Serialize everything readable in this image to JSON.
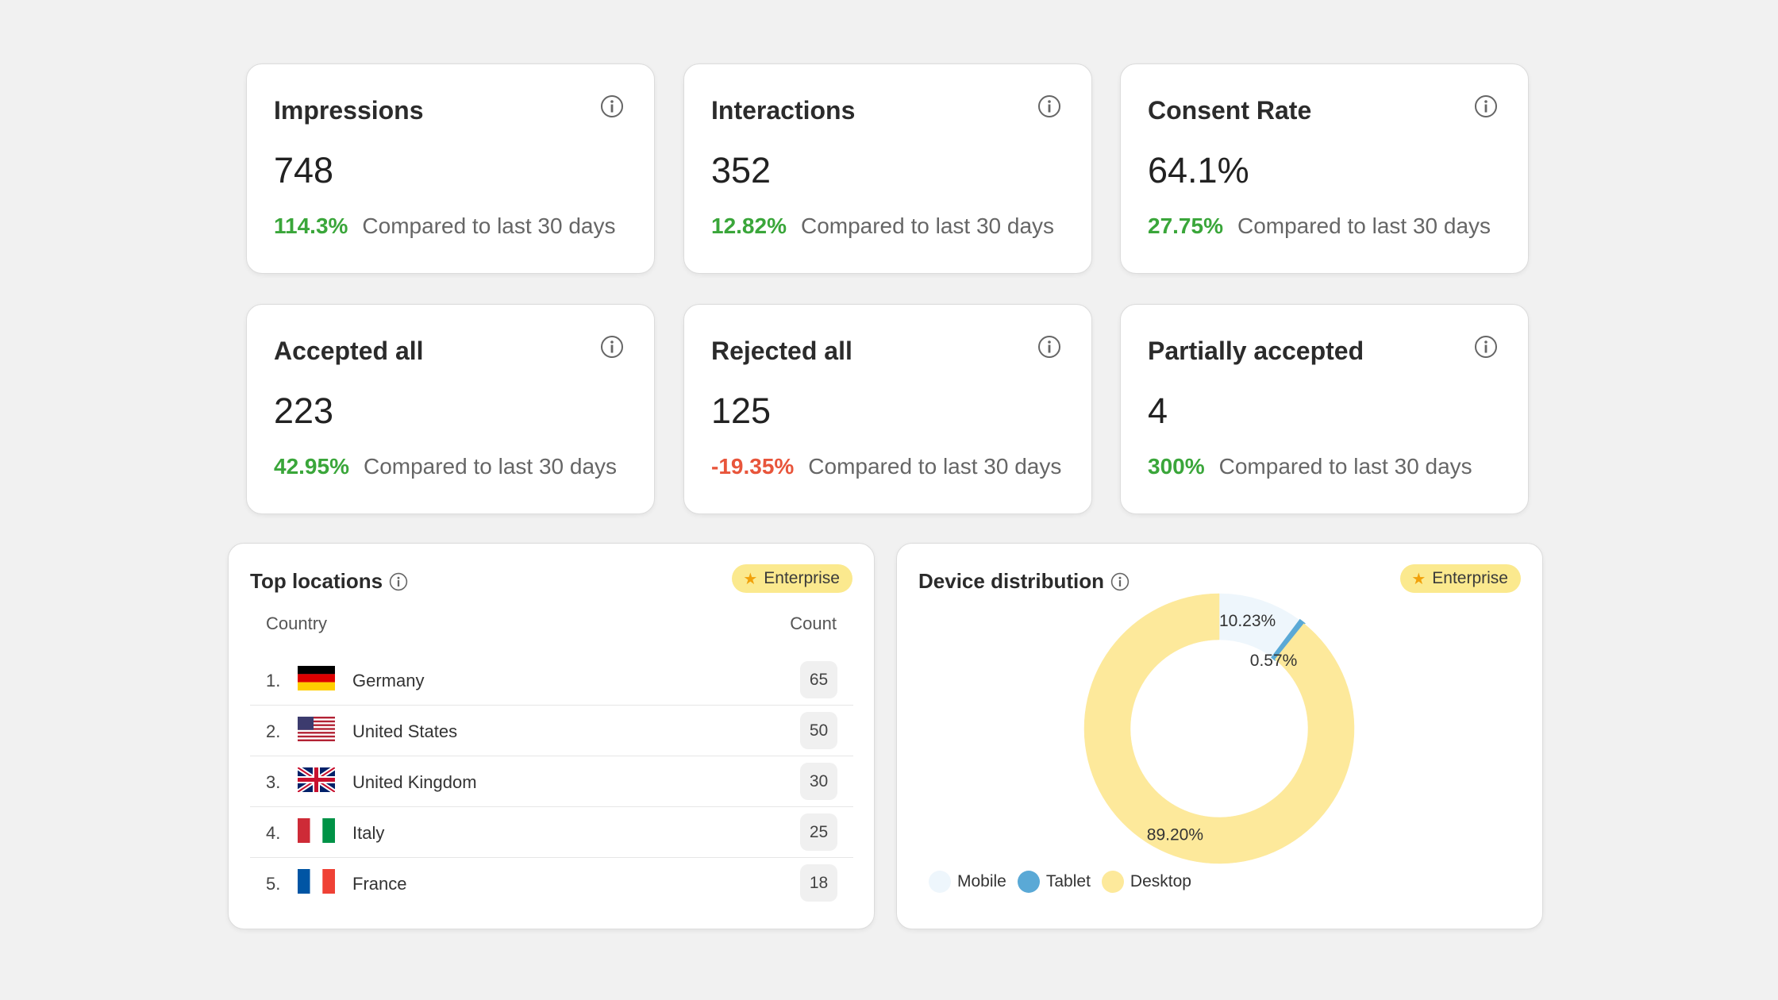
{
  "kpis": [
    {
      "title": "Impressions",
      "value": "748",
      "change": "114.3%",
      "trend": "up",
      "compare": "Compared to last 30 days"
    },
    {
      "title": "Interactions",
      "value": "352",
      "change": "12.82%",
      "trend": "up",
      "compare": "Compared to last 30 days"
    },
    {
      "title": "Consent Rate",
      "value": "64.1%",
      "change": "27.75%",
      "trend": "up",
      "compare": "Compared to last 30 days"
    },
    {
      "title": "Accepted all",
      "value": "223",
      "change": "42.95%",
      "trend": "up",
      "compare": "Compared to last 30 days"
    },
    {
      "title": "Rejected all",
      "value": "125",
      "change": "-19.35%",
      "trend": "down",
      "compare": "Compared to last 30 days"
    },
    {
      "title": "Partially accepted",
      "value": "4",
      "change": "300%",
      "trend": "up",
      "compare": "Compared to last 30 days"
    }
  ],
  "top_locations": {
    "title": "Top locations",
    "badge": "Enterprise",
    "col_country": "Country",
    "col_count": "Count",
    "rows": [
      {
        "rank": "1.",
        "country": "Germany",
        "count": "65",
        "flag": "flag-germany-icon"
      },
      {
        "rank": "2.",
        "country": "United States",
        "count": "50",
        "flag": "flag-united-states-icon"
      },
      {
        "rank": "3.",
        "country": "United Kingdom",
        "count": "30",
        "flag": "flag-united-kingdom-icon"
      },
      {
        "rank": "4.",
        "country": "Italy",
        "count": "25",
        "flag": "flag-italy-icon"
      },
      {
        "rank": "5.",
        "country": "France",
        "count": "18",
        "flag": "flag-france-icon"
      }
    ]
  },
  "device_distribution": {
    "title": "Device distribution",
    "badge": "Enterprise",
    "chart_data": {
      "type": "pie",
      "categories": [
        "Mobile",
        "Tablet",
        "Desktop"
      ],
      "values": [
        10.23,
        0.57,
        89.2
      ],
      "labels": [
        "10.23%",
        "0.57%",
        "89.20%"
      ],
      "colors": [
        "#eef6fc",
        "#5aa9d6",
        "#fde99b"
      ],
      "legend_position": "bottom-left"
    }
  },
  "colors": {
    "positive": "#3aa63a",
    "negative": "#e8553b",
    "badge_bg": "#fbe98e"
  }
}
